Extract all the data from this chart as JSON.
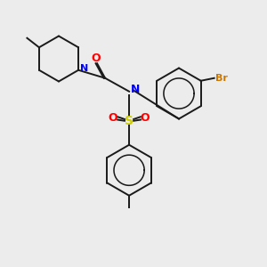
{
  "bg_color": "#ececec",
  "black": "#1a1a1a",
  "blue": "#0000ff",
  "red": "#ff0000",
  "orange": "#cc7700",
  "yellow": "#cccc00",
  "lw": 1.4,
  "figsize": [
    3.0,
    3.0
  ],
  "dpi": 100,
  "xlim": [
    0,
    10
  ],
  "ylim": [
    0,
    10
  ]
}
